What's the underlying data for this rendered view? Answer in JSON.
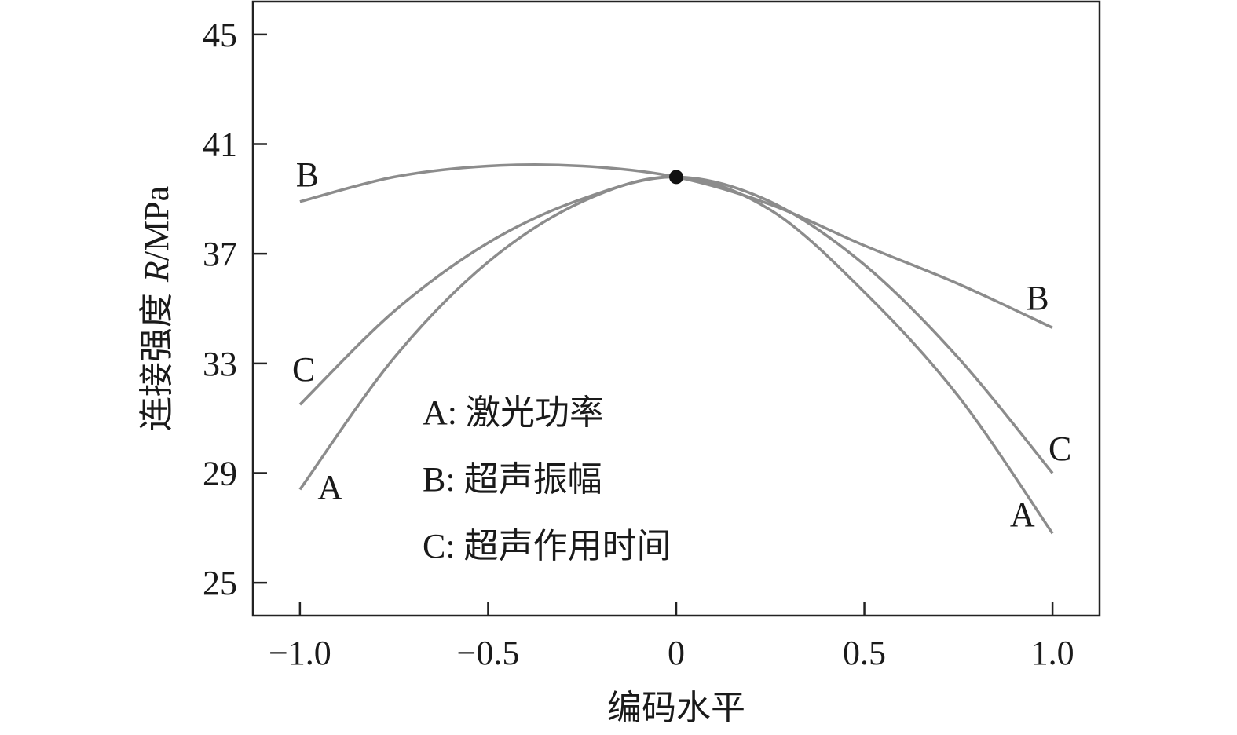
{
  "chart_data": {
    "type": "line",
    "xlabel": "编码水平",
    "ylabel": "连接强度 R/MPa",
    "ylabel_prefix": "连接强度 ",
    "ylabel_italic": "R",
    "ylabel_unit": "/MPa",
    "xlim": [
      -1.125,
      1.125
    ],
    "ylim": [
      23.8,
      46.2
    ],
    "x_ticks": [
      -1.0,
      -0.5,
      0,
      0.5,
      1.0
    ],
    "x_tick_labels": [
      "−1.0",
      "−0.5",
      "0",
      "0.5",
      "1.0"
    ],
    "y_ticks": [
      25,
      29,
      33,
      37,
      41,
      45
    ],
    "y_tick_labels": [
      "25",
      "29",
      "33",
      "37",
      "41",
      "45"
    ],
    "grid": false,
    "center_point": {
      "x": 0,
      "y": 39.8
    },
    "series": [
      {
        "name": "A",
        "x": [
          -1.0,
          -0.75,
          -0.5,
          -0.25,
          0,
          0.25,
          0.5,
          0.75,
          1.0
        ],
        "y": [
          28.4,
          33.2,
          36.7,
          38.9,
          39.8,
          38.6,
          35.6,
          31.8,
          26.8
        ]
      },
      {
        "name": "B",
        "x": [
          -1.0,
          -0.75,
          -0.5,
          -0.25,
          0,
          0.25,
          0.5,
          0.75,
          1.0
        ],
        "y": [
          38.9,
          39.8,
          40.2,
          40.2,
          39.8,
          38.8,
          37.3,
          35.9,
          34.3
        ]
      },
      {
        "name": "C",
        "x": [
          -1.0,
          -0.75,
          -0.5,
          -0.25,
          0,
          0.25,
          0.5,
          0.75,
          1.0
        ],
        "y": [
          31.5,
          34.9,
          37.4,
          39.0,
          39.8,
          38.9,
          36.6,
          33.2,
          29.0
        ]
      }
    ],
    "curve_labels": [
      {
        "text": "B",
        "x": -0.98,
        "y": 39.9
      },
      {
        "text": "C",
        "x": -0.99,
        "y": 32.8
      },
      {
        "text": "A",
        "x": -0.92,
        "y": 28.5
      },
      {
        "text": "B",
        "x": 0.96,
        "y": 35.4
      },
      {
        "text": "C",
        "x": 1.02,
        "y": 29.9
      },
      {
        "text": "A",
        "x": 0.92,
        "y": 27.5
      }
    ],
    "legend": {
      "position": "center",
      "entries": [
        "A: 激光功率",
        "B: 超声振幅",
        "C: 超声作用时间"
      ]
    },
    "colors": {
      "series": "#8c8c8c",
      "frame": "#222222",
      "point": "#111111"
    }
  }
}
